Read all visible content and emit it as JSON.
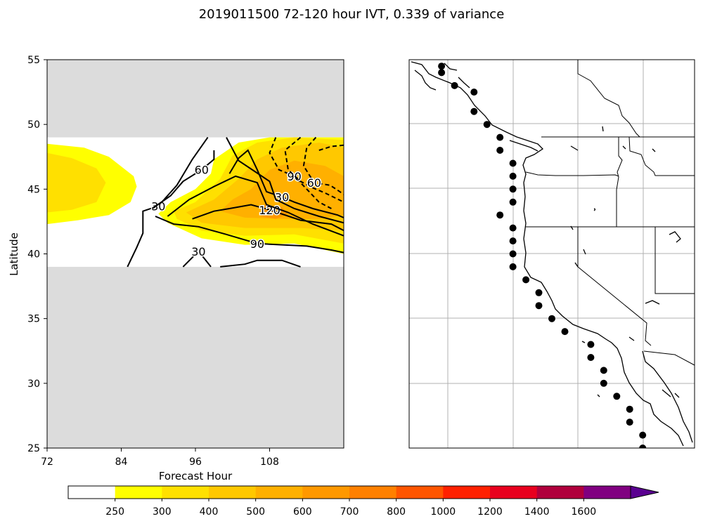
{
  "title": "2019011500 72-120 hour IVT, 0.339 of variance",
  "chart_data": [
    {
      "type": "contour",
      "xlabel": "Forecast Hour",
      "ylabel": "Latitude",
      "xlim": [
        72,
        120
      ],
      "ylim": [
        25,
        55
      ],
      "x_ticks": [
        "72",
        "84",
        "96",
        "108"
      ],
      "y_ticks": [
        "25",
        "30",
        "35",
        "40",
        "45",
        "50",
        "55"
      ],
      "data_band_lat": [
        39,
        49
      ],
      "masked_color": "#dcdcdc",
      "filled_regions": [
        {
          "level": 250,
          "color": "#ffff00",
          "points": [
            [
              72,
              48.5
            ],
            [
              78,
              48.2
            ],
            [
              82,
              47.5
            ],
            [
              86,
              46
            ],
            [
              86.5,
              45.2
            ],
            [
              85.5,
              44
            ],
            [
              82,
              43
            ],
            [
              77,
              42.6
            ],
            [
              72,
              42.3
            ]
          ]
        },
        {
          "level": 300,
          "color": "#ffe000",
          "points": [
            [
              72,
              47.8
            ],
            [
              76,
              47.4
            ],
            [
              80,
              46.6
            ],
            [
              81.5,
              45.5
            ],
            [
              80,
              44
            ],
            [
              76,
              43.4
            ],
            [
              72,
              43.2
            ]
          ]
        },
        {
          "level": 250,
          "color": "#ffff00",
          "points": [
            [
              99,
              47.3
            ],
            [
              103,
              48.6
            ],
            [
              108,
              49
            ],
            [
              120,
              49
            ],
            [
              120,
              40
            ],
            [
              112,
              40.8
            ],
            [
              104,
              40.7
            ],
            [
              97,
              41.2
            ],
            [
              91.5,
              42.4
            ],
            [
              90,
              43.1
            ],
            [
              92,
              44
            ],
            [
              96,
              45
            ],
            [
              98.5,
              46.2
            ]
          ]
        },
        {
          "level": 300,
          "color": "#ffe000",
          "points": [
            [
              102,
              47.6
            ],
            [
              106,
              48.6
            ],
            [
              112,
              49
            ],
            [
              120,
              48.8
            ],
            [
              120,
              40.8
            ],
            [
              112,
              41.5
            ],
            [
              104,
              41.4
            ],
            [
              97,
              41.8
            ],
            [
              93,
              42.7
            ],
            [
              92.5,
              43.3
            ],
            [
              96,
              44
            ],
            [
              100,
              45.8
            ]
          ]
        },
        {
          "level": 400,
          "color": "#ffc800",
          "points": [
            [
              106,
              47.3
            ],
            [
              110,
              48.2
            ],
            [
              116,
              48.6
            ],
            [
              120,
              48.2
            ],
            [
              120,
              41.8
            ],
            [
              113,
              42
            ],
            [
              104,
              42
            ],
            [
              97,
              42.4
            ],
            [
              94.5,
              43.2
            ],
            [
              99,
              44.2
            ],
            [
              103,
              45.8
            ]
          ]
        },
        {
          "level": 500,
          "color": "#ffb000",
          "points": [
            [
              105,
              45
            ],
            [
              108,
              46.5
            ],
            [
              112,
              47.2
            ],
            [
              117,
              46.8
            ],
            [
              120,
              46
            ],
            [
              120,
              43
            ],
            [
              116,
              42.7
            ],
            [
              110,
              42.7
            ],
            [
              104,
              42.8
            ],
            [
              100,
              43.3
            ],
            [
              102,
              44.2
            ]
          ]
        },
        {
          "level": 600,
          "color": "#ff9800",
          "points": [
            [
              107,
              43.8
            ],
            [
              110,
              43.6
            ],
            [
              111,
              43.1
            ],
            [
              109,
              42.7
            ],
            [
              106.5,
              42.9
            ]
          ]
        }
      ],
      "contours": [
        {
          "label": "30",
          "style": "solid",
          "points": [
            [
              85,
              39
            ],
            [
              86.5,
              40.5
            ],
            [
              87.5,
              41.6
            ],
            [
              87.5,
              43.3
            ],
            [
              90,
              43.7
            ],
            [
              93,
              45.3
            ],
            [
              95.5,
              47.3
            ],
            [
              98,
              49
            ]
          ]
        },
        {
          "label": "60",
          "style": "solid",
          "points": [
            [
              89,
              43.5
            ],
            [
              92,
              44.5
            ],
            [
              94,
              45.6
            ],
            [
              97,
              46.5
            ],
            [
              99,
              47.3
            ],
            [
              99,
              48
            ]
          ]
        },
        {
          "label": "30",
          "style": "solid",
          "points": [
            [
              94,
              39
            ],
            [
              96.5,
              40.2
            ],
            [
              98.5,
              39
            ]
          ]
        },
        {
          "label": "120",
          "style": "solid",
          "points": [
            [
              95.5,
              42.7
            ],
            [
              99,
              43.3
            ],
            [
              101.5,
              43.5
            ],
            [
              105,
              43.8
            ],
            [
              108,
              43.4
            ],
            [
              113,
              42.6
            ],
            [
              118,
              42.3
            ],
            [
              120,
              41.8
            ]
          ]
        },
        {
          "label": "",
          "style": "solid",
          "points": [
            [
              91.5,
              42.9
            ],
            [
              95,
              44.2
            ],
            [
              99,
              45.2
            ],
            [
              102.5,
              46
            ],
            [
              106,
              45.5
            ],
            [
              107.5,
              43.8
            ],
            [
              111,
              43.2
            ],
            [
              115,
              42.3
            ],
            [
              120,
              41.4
            ]
          ]
        },
        {
          "label": "90",
          "style": "solid",
          "points": [
            [
              89.5,
              42.9
            ],
            [
              92.5,
              42.3
            ],
            [
              96.5,
              42.1
            ],
            [
              101,
              41.5
            ],
            [
              106,
              40.8
            ],
            [
              114,
              40.6
            ],
            [
              118,
              40.3
            ],
            [
              120,
              40.1
            ]
          ]
        },
        {
          "label": "30",
          "style": "solid",
          "points": [
            [
              101.5,
              46.2
            ],
            [
              103,
              47.4
            ],
            [
              104.5,
              48
            ],
            [
              106,
              46.5
            ],
            [
              107.5,
              44.8
            ],
            [
              110,
              44.4
            ],
            [
              112,
              44
            ],
            [
              115,
              43.5
            ],
            [
              119,
              43
            ],
            [
              120,
              42.8
            ]
          ]
        },
        {
          "label": "",
          "style": "solid",
          "points": [
            [
              101,
              49
            ],
            [
              103,
              47.2
            ],
            [
              105.5,
              46.4
            ],
            [
              108,
              45.6
            ],
            [
              109,
              44.2
            ],
            [
              112,
              43.5
            ],
            [
              116,
              42.9
            ],
            [
              120,
              42.4
            ]
          ]
        },
        {
          "label": "",
          "style": "solid",
          "points": [
            [
              100,
              39
            ],
            [
              104,
              39.2
            ],
            [
              106,
              39.5
            ],
            [
              108,
              39.5
            ],
            [
              110,
              39.5
            ],
            [
              113,
              39
            ]
          ]
        },
        {
          "label": "90",
          "style": "dashed",
          "points": [
            [
              109,
              49
            ],
            [
              108,
              47.8
            ],
            [
              109.5,
              46.5
            ],
            [
              112,
              46
            ],
            [
              114,
              45
            ],
            [
              116,
              44
            ],
            [
              118,
              43.5
            ]
          ]
        },
        {
          "label": "",
          "style": "dashed",
          "points": [
            [
              113,
              49
            ],
            [
              110.5,
              48
            ],
            [
              111,
              46.5
            ],
            [
              113,
              45.6
            ],
            [
              115,
              45.1
            ],
            [
              117,
              44.7
            ],
            [
              120,
              44
            ]
          ]
        },
        {
          "label": "60",
          "style": "dashed",
          "points": [
            [
              115.5,
              49
            ],
            [
              114,
              48.2
            ],
            [
              113.5,
              46.8
            ],
            [
              115.2,
              45.5
            ],
            [
              117.8,
              45.3
            ],
            [
              120,
              44.6
            ]
          ]
        },
        {
          "label": "",
          "style": "dashed",
          "points": [
            [
              116,
              48
            ],
            [
              118,
              48.3
            ],
            [
              120,
              48.4
            ]
          ]
        }
      ]
    },
    {
      "type": "map",
      "description_points_lonlat": [
        [
          -131.5,
          54.5
        ],
        [
          -131.5,
          54
        ],
        [
          -130.5,
          53
        ],
        [
          -129,
          52.5
        ],
        [
          -129,
          51
        ],
        [
          -128,
          50
        ],
        [
          -127,
          49
        ],
        [
          -127,
          48
        ],
        [
          -126,
          47
        ],
        [
          -126,
          46
        ],
        [
          -126,
          45
        ],
        [
          -126,
          44
        ],
        [
          -127,
          43
        ],
        [
          -126,
          42
        ],
        [
          -126,
          41
        ],
        [
          -126,
          40
        ],
        [
          -126,
          39
        ],
        [
          -125,
          38
        ],
        [
          -124,
          37
        ],
        [
          -124,
          36
        ],
        [
          -123,
          35
        ],
        [
          -122,
          34
        ],
        [
          -120,
          33
        ],
        [
          -120,
          32
        ],
        [
          -119,
          31
        ],
        [
          -119,
          30
        ],
        [
          -118,
          29
        ],
        [
          -117,
          28
        ],
        [
          -117,
          27
        ],
        [
          -116,
          26
        ],
        [
          -116,
          25
        ]
      ],
      "lon_range": [
        -134,
        -112
      ],
      "lat_range": [
        25,
        55
      ]
    }
  ],
  "colorbar": {
    "levels": [
      "250",
      "300",
      "400",
      "500",
      "600",
      "700",
      "800",
      "1000",
      "1200",
      "1400",
      "1600"
    ],
    "colors": [
      "#ffffff",
      "#ffff00",
      "#ffe000",
      "#ffc800",
      "#ffb000",
      "#ff9800",
      "#ff8000",
      "#ff5500",
      "#ff2000",
      "#e8001e",
      "#b0003c",
      "#800080",
      "#5a0090"
    ]
  }
}
